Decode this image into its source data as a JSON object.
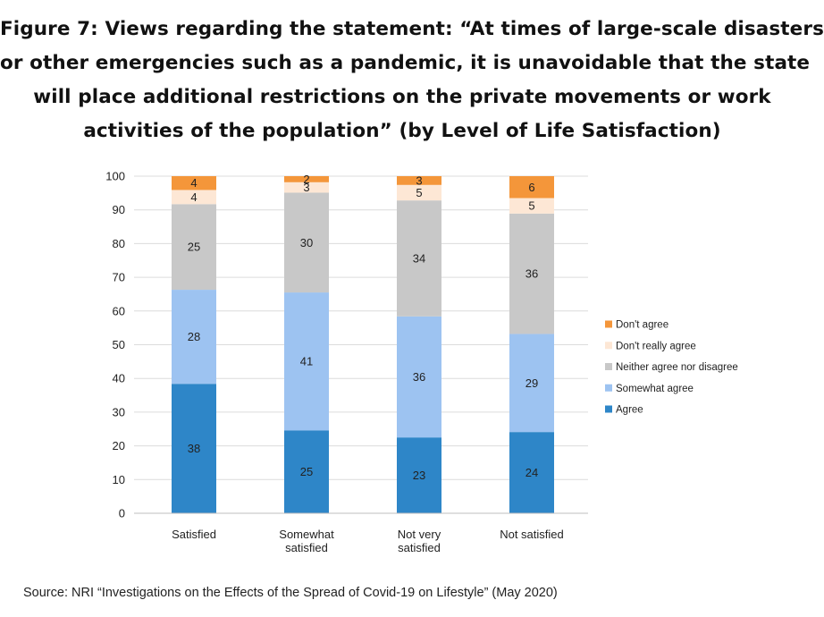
{
  "title_lines": [
    "Figure 7: Views regarding the statement: “At times of large-scale disasters",
    "or other emergencies such as a pandemic, it is unavoidable that the state",
    "will place additional restrictions on the private movements or work",
    "activities of the population”  (by Level of Life Satisfaction)"
  ],
  "source": "Source: NRI “Investigations on the Effects of the Spread of Covid-19 on Lifestyle” (May 2020)",
  "chart_data": {
    "type": "bar",
    "stacked": true,
    "categories": [
      [
        "Satisfied"
      ],
      [
        "Somewhat",
        "satisfied"
      ],
      [
        "Not very",
        "satisfied"
      ],
      [
        "Not satisfied"
      ]
    ],
    "series": [
      {
        "name": "Agree",
        "color": "#2e86c8",
        "values": [
          38.4,
          24.6,
          22.5,
          24.1
        ]
      },
      {
        "name": "Somewhat agree",
        "color": "#9dc3f1",
        "values": [
          27.9,
          40.9,
          35.9,
          29.1
        ]
      },
      {
        "name": "Neither agree nor disagree",
        "color": "#c8c8c8",
        "values": [
          25.4,
          29.6,
          34.4,
          35.7
        ]
      },
      {
        "name": "Don't really agree",
        "color": "#fde7d5",
        "values": [
          4.2,
          3.1,
          4.6,
          4.6
        ]
      },
      {
        "name": "Don't agree",
        "color": "#f4963a",
        "values": [
          4.1,
          1.8,
          2.6,
          6.5
        ]
      }
    ],
    "labels": [
      [
        "38",
        "25",
        "23",
        "24"
      ],
      [
        "28",
        "41",
        "36",
        "29"
      ],
      [
        "25",
        "30",
        "34",
        "36"
      ],
      [
        "4",
        "3",
        "5",
        "5"
      ],
      [
        "4",
        "2",
        "3",
        "6"
      ]
    ],
    "ylim": [
      0,
      100
    ],
    "yticks": [
      0,
      10,
      20,
      30,
      40,
      50,
      60,
      70,
      80,
      90,
      100
    ],
    "grid": true,
    "legend": "right",
    "legend_order": [
      4,
      3,
      2,
      1,
      0
    ],
    "gridline_color": "#dcdcdc"
  }
}
